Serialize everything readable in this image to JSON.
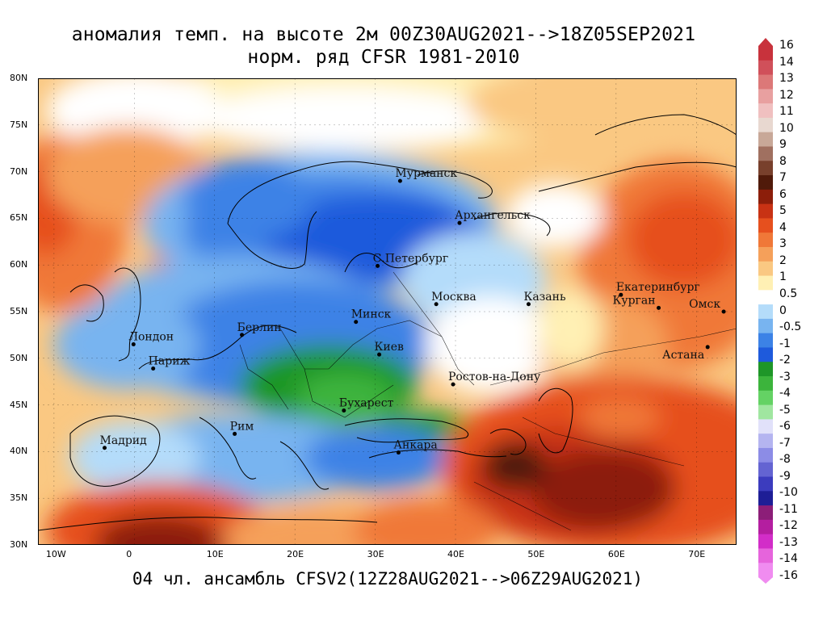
{
  "title": {
    "line1": "аномалия темп. на высоте 2м 00Z30AUG2021-->18Z05SEP2021",
    "line2": "норм. ряд CFSR 1981-2010"
  },
  "footer": "04 чл. ансамбль CFSV2(12Z28AUG2021-->06Z29AUG2021)",
  "axes": {
    "lat_ticks": [
      "80N",
      "75N",
      "70N",
      "65N",
      "60N",
      "55N",
      "50N",
      "45N",
      "40N",
      "35N",
      "30N"
    ],
    "lon_ticks": [
      "10W",
      "0",
      "10E",
      "20E",
      "30E",
      "40E",
      "50E",
      "60E",
      "70E"
    ]
  },
  "cities": [
    {
      "name": "Мурманск",
      "lon": 33.1,
      "lat": 69.0
    },
    {
      "name": "Архангельск",
      "lon": 40.5,
      "lat": 64.5
    },
    {
      "name": "С.Петербург",
      "lon": 30.3,
      "lat": 59.9
    },
    {
      "name": "Москва",
      "lon": 37.6,
      "lat": 55.8
    },
    {
      "name": "Казань",
      "lon": 49.1,
      "lat": 55.8
    },
    {
      "name": "Екатеринбург",
      "lon": 60.6,
      "lat": 56.8
    },
    {
      "name": "Курган",
      "lon": 65.3,
      "lat": 55.4
    },
    {
      "name": "Омск",
      "lon": 73.4,
      "lat": 55.0
    },
    {
      "name": "Астана",
      "lon": 71.4,
      "lat": 51.2
    },
    {
      "name": "Минск",
      "lon": 27.6,
      "lat": 53.9
    },
    {
      "name": "Берлин",
      "lon": 13.4,
      "lat": 52.5
    },
    {
      "name": "Лондон",
      "lon": -0.1,
      "lat": 51.5
    },
    {
      "name": "Париж",
      "lon": 2.35,
      "lat": 48.9
    },
    {
      "name": "Киев",
      "lon": 30.5,
      "lat": 50.4
    },
    {
      "name": "Ростов-на-Дону",
      "lon": 39.7,
      "lat": 47.2
    },
    {
      "name": "Бухарест",
      "lon": 26.1,
      "lat": 44.4
    },
    {
      "name": "Рим",
      "lon": 12.5,
      "lat": 41.9
    },
    {
      "name": "Мадрид",
      "lon": -3.7,
      "lat": 40.4
    },
    {
      "name": "Анкара",
      "lon": 32.9,
      "lat": 39.9
    }
  ],
  "colorbar": {
    "levels": [
      "16",
      "14",
      "13",
      "12",
      "11",
      "10",
      "9",
      "8",
      "7",
      "6",
      "5",
      "4",
      "3",
      "2",
      "1",
      "0.5",
      "0",
      "-0.5",
      "-1",
      "-2",
      "-3",
      "-4",
      "-5",
      "-6",
      "-7",
      "-8",
      "-9",
      "-10",
      "-11",
      "-12",
      "-13",
      "-14",
      "-16"
    ],
    "colors": [
      "#c8323c",
      "#d0505a",
      "#dc7878",
      "#e8a0a0",
      "#f0c0c0",
      "#e8d8d0",
      "#c8a898",
      "#a07060",
      "#78402c",
      "#501a0a",
      "#8c1e0a",
      "#c83214",
      "#e6501e",
      "#f07838",
      "#f5a05a",
      "#fac882",
      "#fff0b4",
      "#ffffff",
      "#b4dcfa",
      "#78b4f0",
      "#3c82e6",
      "#1e5adc",
      "#1e9628",
      "#3cb43c",
      "#64d264",
      "#a0e6a0",
      "#e1e1fa",
      "#b4b4f0",
      "#8c8ce6",
      "#6464d2",
      "#3c3cbe",
      "#1e1e96",
      "#8c1e78",
      "#b41ea0",
      "#d22dc8",
      "#e664dc",
      "#f08cf0"
    ]
  }
}
